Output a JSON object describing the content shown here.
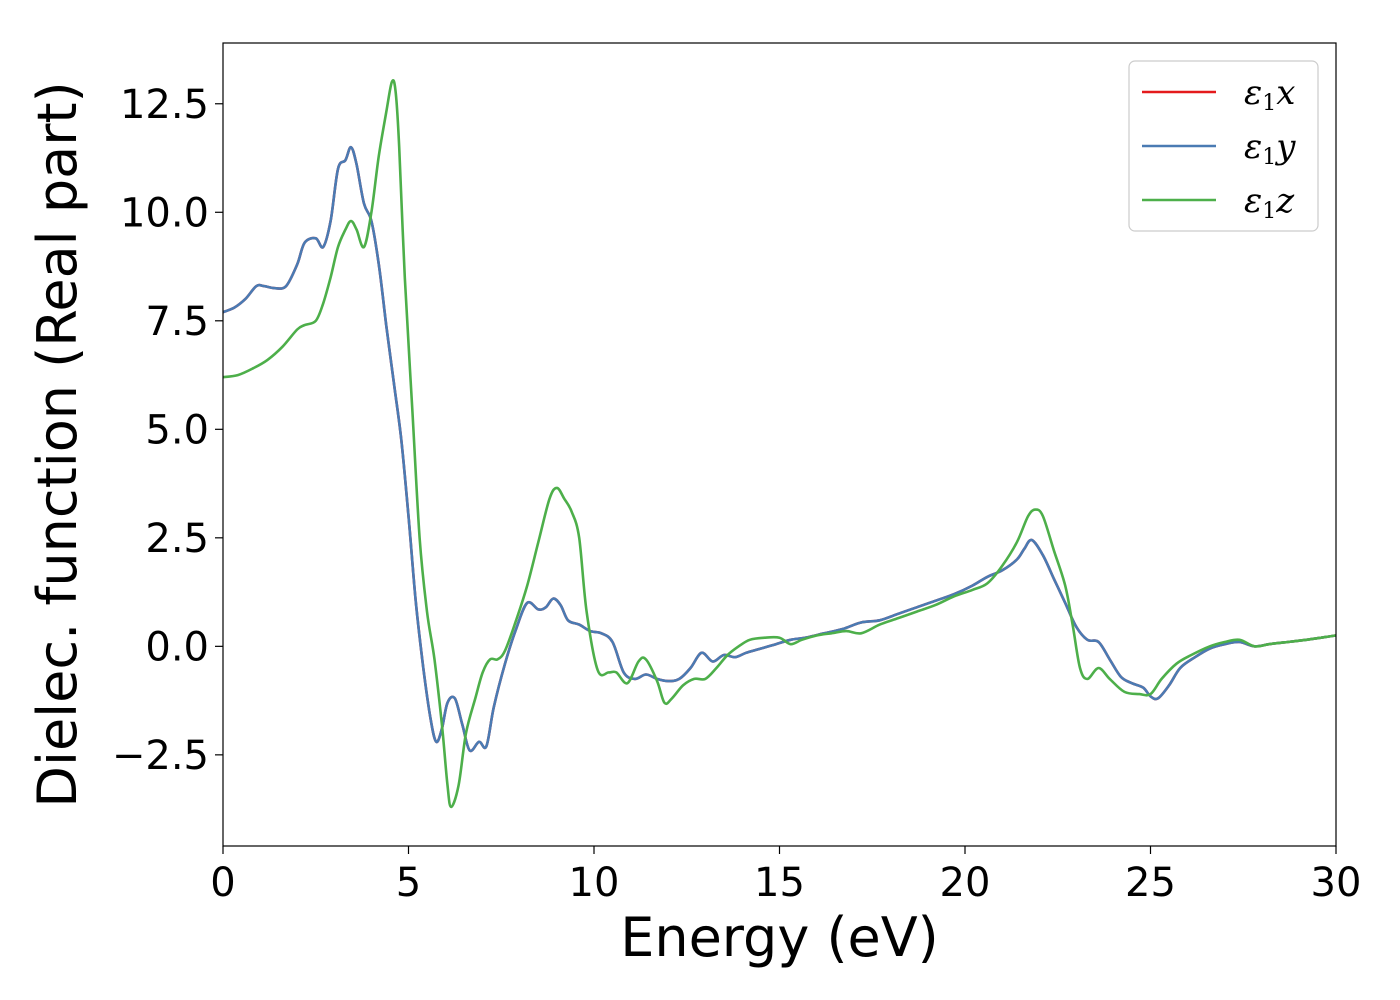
{
  "chart_data": {
    "type": "line",
    "title": "",
    "xlabel": "Energy (eV)",
    "ylabel": "Dielec. function (Real part)",
    "xlim": [
      0,
      30
    ],
    "ylim": [
      -4.6,
      13.9
    ],
    "xticks": [
      0,
      5,
      10,
      15,
      20,
      25,
      30
    ],
    "xtick_labels": [
      "0",
      "5",
      "10",
      "15",
      "20",
      "25",
      "30"
    ],
    "yticks": [
      -2.5,
      0.0,
      2.5,
      5.0,
      7.5,
      10.0,
      12.5
    ],
    "ytick_labels": [
      "−2.5",
      "0.0",
      "2.5",
      "5.0",
      "7.5",
      "10.0",
      "12.5"
    ],
    "grid": false,
    "legend": {
      "placement": "top-right"
    },
    "series": [
      {
        "name": "ε1x",
        "name_base": "ε",
        "name_sub": "1",
        "name_suffix": "x",
        "color": "#e41a1c",
        "x": [
          0,
          0.3,
          0.6,
          0.9,
          1.1,
          1.4,
          1.7,
          2.0,
          2.2,
          2.5,
          2.7,
          2.9,
          3.1,
          3.3,
          3.45,
          3.6,
          3.8,
          4.0,
          4.2,
          4.4,
          4.6,
          4.8,
          5.0,
          5.2,
          5.4,
          5.6,
          5.75,
          5.9,
          6.05,
          6.25,
          6.45,
          6.65,
          6.9,
          7.1,
          7.3,
          7.6,
          7.9,
          8.2,
          8.5,
          8.7,
          8.9,
          9.1,
          9.3,
          9.6,
          9.9,
          10.2,
          10.5,
          10.8,
          11.1,
          11.4,
          11.7,
          12.0,
          12.3,
          12.6,
          12.9,
          13.2,
          13.5,
          13.8,
          14.1,
          14.5,
          14.9,
          15.3,
          15.7,
          16.2,
          16.7,
          17.2,
          17.7,
          18.2,
          18.7,
          19.2,
          19.7,
          20.2,
          20.6,
          21.0,
          21.4,
          21.6,
          21.8,
          22.1,
          22.4,
          22.7,
          23.0,
          23.3,
          23.6,
          23.9,
          24.2,
          24.5,
          24.8,
          25.0,
          25.2,
          25.5,
          25.8,
          26.2,
          26.6,
          27.0,
          27.4,
          27.8,
          28.2,
          28.7,
          29.2,
          29.6,
          30.0
        ],
        "values": [
          7.7,
          7.8,
          8.0,
          8.3,
          8.3,
          8.25,
          8.3,
          8.8,
          9.3,
          9.4,
          9.2,
          9.8,
          11.0,
          11.2,
          11.5,
          11.1,
          10.2,
          9.8,
          8.8,
          7.4,
          6.1,
          4.8,
          3.0,
          1.0,
          -0.5,
          -1.7,
          -2.2,
          -1.9,
          -1.3,
          -1.2,
          -1.8,
          -2.4,
          -2.2,
          -2.3,
          -1.4,
          -0.4,
          0.4,
          1.0,
          0.85,
          0.9,
          1.1,
          0.95,
          0.6,
          0.5,
          0.35,
          0.3,
          0.1,
          -0.6,
          -0.75,
          -0.65,
          -0.75,
          -0.8,
          -0.75,
          -0.5,
          -0.15,
          -0.35,
          -0.2,
          -0.25,
          -0.15,
          -0.05,
          0.05,
          0.15,
          0.2,
          0.3,
          0.4,
          0.55,
          0.6,
          0.75,
          0.9,
          1.05,
          1.2,
          1.4,
          1.6,
          1.75,
          2.0,
          2.25,
          2.45,
          2.1,
          1.55,
          1.0,
          0.45,
          0.15,
          0.1,
          -0.3,
          -0.7,
          -0.85,
          -0.95,
          -1.15,
          -1.2,
          -0.9,
          -0.5,
          -0.25,
          -0.05,
          0.05,
          0.1,
          0.0,
          0.05,
          0.1,
          0.15,
          0.2,
          0.25
        ]
      },
      {
        "name": "ε1y",
        "name_base": "ε",
        "name_sub": "1",
        "name_suffix": "y",
        "color": "#4a7bb3",
        "x": [
          0,
          0.3,
          0.6,
          0.9,
          1.1,
          1.4,
          1.7,
          2.0,
          2.2,
          2.5,
          2.7,
          2.9,
          3.1,
          3.3,
          3.45,
          3.6,
          3.8,
          4.0,
          4.2,
          4.4,
          4.6,
          4.8,
          5.0,
          5.2,
          5.4,
          5.6,
          5.75,
          5.9,
          6.05,
          6.25,
          6.45,
          6.65,
          6.9,
          7.1,
          7.3,
          7.6,
          7.9,
          8.2,
          8.5,
          8.7,
          8.9,
          9.1,
          9.3,
          9.6,
          9.9,
          10.2,
          10.5,
          10.8,
          11.1,
          11.4,
          11.7,
          12.0,
          12.3,
          12.6,
          12.9,
          13.2,
          13.5,
          13.8,
          14.1,
          14.5,
          14.9,
          15.3,
          15.7,
          16.2,
          16.7,
          17.2,
          17.7,
          18.2,
          18.7,
          19.2,
          19.7,
          20.2,
          20.6,
          21.0,
          21.4,
          21.6,
          21.8,
          22.1,
          22.4,
          22.7,
          23.0,
          23.3,
          23.6,
          23.9,
          24.2,
          24.5,
          24.8,
          25.0,
          25.2,
          25.5,
          25.8,
          26.2,
          26.6,
          27.0,
          27.4,
          27.8,
          28.2,
          28.7,
          29.2,
          29.6,
          30.0
        ],
        "values": [
          7.7,
          7.8,
          8.0,
          8.3,
          8.3,
          8.25,
          8.3,
          8.8,
          9.3,
          9.4,
          9.2,
          9.8,
          11.0,
          11.2,
          11.5,
          11.1,
          10.2,
          9.8,
          8.8,
          7.4,
          6.1,
          4.8,
          3.0,
          1.0,
          -0.5,
          -1.7,
          -2.2,
          -1.9,
          -1.3,
          -1.2,
          -1.8,
          -2.4,
          -2.2,
          -2.3,
          -1.4,
          -0.4,
          0.4,
          1.0,
          0.85,
          0.9,
          1.1,
          0.95,
          0.6,
          0.5,
          0.35,
          0.3,
          0.1,
          -0.6,
          -0.75,
          -0.65,
          -0.75,
          -0.8,
          -0.75,
          -0.5,
          -0.15,
          -0.35,
          -0.2,
          -0.25,
          -0.15,
          -0.05,
          0.05,
          0.15,
          0.2,
          0.3,
          0.4,
          0.55,
          0.6,
          0.75,
          0.9,
          1.05,
          1.2,
          1.4,
          1.6,
          1.75,
          2.0,
          2.25,
          2.45,
          2.1,
          1.55,
          1.0,
          0.45,
          0.15,
          0.1,
          -0.3,
          -0.7,
          -0.85,
          -0.95,
          -1.15,
          -1.2,
          -0.9,
          -0.5,
          -0.25,
          -0.05,
          0.05,
          0.1,
          0.0,
          0.05,
          0.1,
          0.15,
          0.2,
          0.25
        ]
      },
      {
        "name": "ε1z",
        "name_base": "ε",
        "name_sub": "1",
        "name_suffix": "z",
        "color": "#4daf4a",
        "x": [
          0,
          0.4,
          0.8,
          1.2,
          1.6,
          2.0,
          2.2,
          2.5,
          2.7,
          2.9,
          3.1,
          3.3,
          3.45,
          3.6,
          3.8,
          4.0,
          4.2,
          4.4,
          4.55,
          4.65,
          4.75,
          4.9,
          5.1,
          5.3,
          5.5,
          5.7,
          5.9,
          6.05,
          6.15,
          6.35,
          6.55,
          6.8,
          7.0,
          7.2,
          7.4,
          7.6,
          7.9,
          8.2,
          8.5,
          8.8,
          9.0,
          9.2,
          9.4,
          9.6,
          9.8,
          10.1,
          10.4,
          10.6,
          10.9,
          11.2,
          11.4,
          11.7,
          11.9,
          12.1,
          12.4,
          12.7,
          13.0,
          13.3,
          13.6,
          13.9,
          14.2,
          14.6,
          15.0,
          15.3,
          15.6,
          16.0,
          16.4,
          16.8,
          17.2,
          17.7,
          18.2,
          18.7,
          19.2,
          19.7,
          20.2,
          20.6,
          21.0,
          21.4,
          21.7,
          21.9,
          22.1,
          22.4,
          22.7,
          22.9,
          23.1,
          23.3,
          23.6,
          23.9,
          24.3,
          24.7,
          25.0,
          25.3,
          25.7,
          26.1,
          26.6,
          27.0,
          27.4,
          27.8,
          28.2,
          28.7,
          29.2,
          29.6,
          30.0
        ],
        "values": [
          6.2,
          6.25,
          6.4,
          6.6,
          6.9,
          7.3,
          7.4,
          7.5,
          7.9,
          8.5,
          9.2,
          9.6,
          9.8,
          9.6,
          9.2,
          10.0,
          11.3,
          12.3,
          13.0,
          12.8,
          11.5,
          8.5,
          5.5,
          2.5,
          0.8,
          -0.3,
          -1.8,
          -3.2,
          -3.7,
          -3.2,
          -2.0,
          -1.2,
          -0.6,
          -0.3,
          -0.3,
          -0.1,
          0.6,
          1.4,
          2.4,
          3.4,
          3.65,
          3.4,
          3.1,
          2.5,
          0.8,
          -0.55,
          -0.6,
          -0.6,
          -0.85,
          -0.35,
          -0.3,
          -0.8,
          -1.3,
          -1.2,
          -0.9,
          -0.75,
          -0.75,
          -0.5,
          -0.2,
          0.0,
          0.15,
          0.2,
          0.2,
          0.05,
          0.15,
          0.25,
          0.3,
          0.35,
          0.3,
          0.5,
          0.65,
          0.8,
          0.95,
          1.15,
          1.3,
          1.45,
          1.85,
          2.4,
          3.0,
          3.15,
          3.0,
          2.2,
          1.4,
          0.5,
          -0.5,
          -0.75,
          -0.5,
          -0.75,
          -1.05,
          -1.1,
          -1.1,
          -0.75,
          -0.4,
          -0.2,
          0.0,
          0.1,
          0.15,
          0.0,
          0.05,
          0.1,
          0.15,
          0.2,
          0.25
        ]
      }
    ]
  }
}
